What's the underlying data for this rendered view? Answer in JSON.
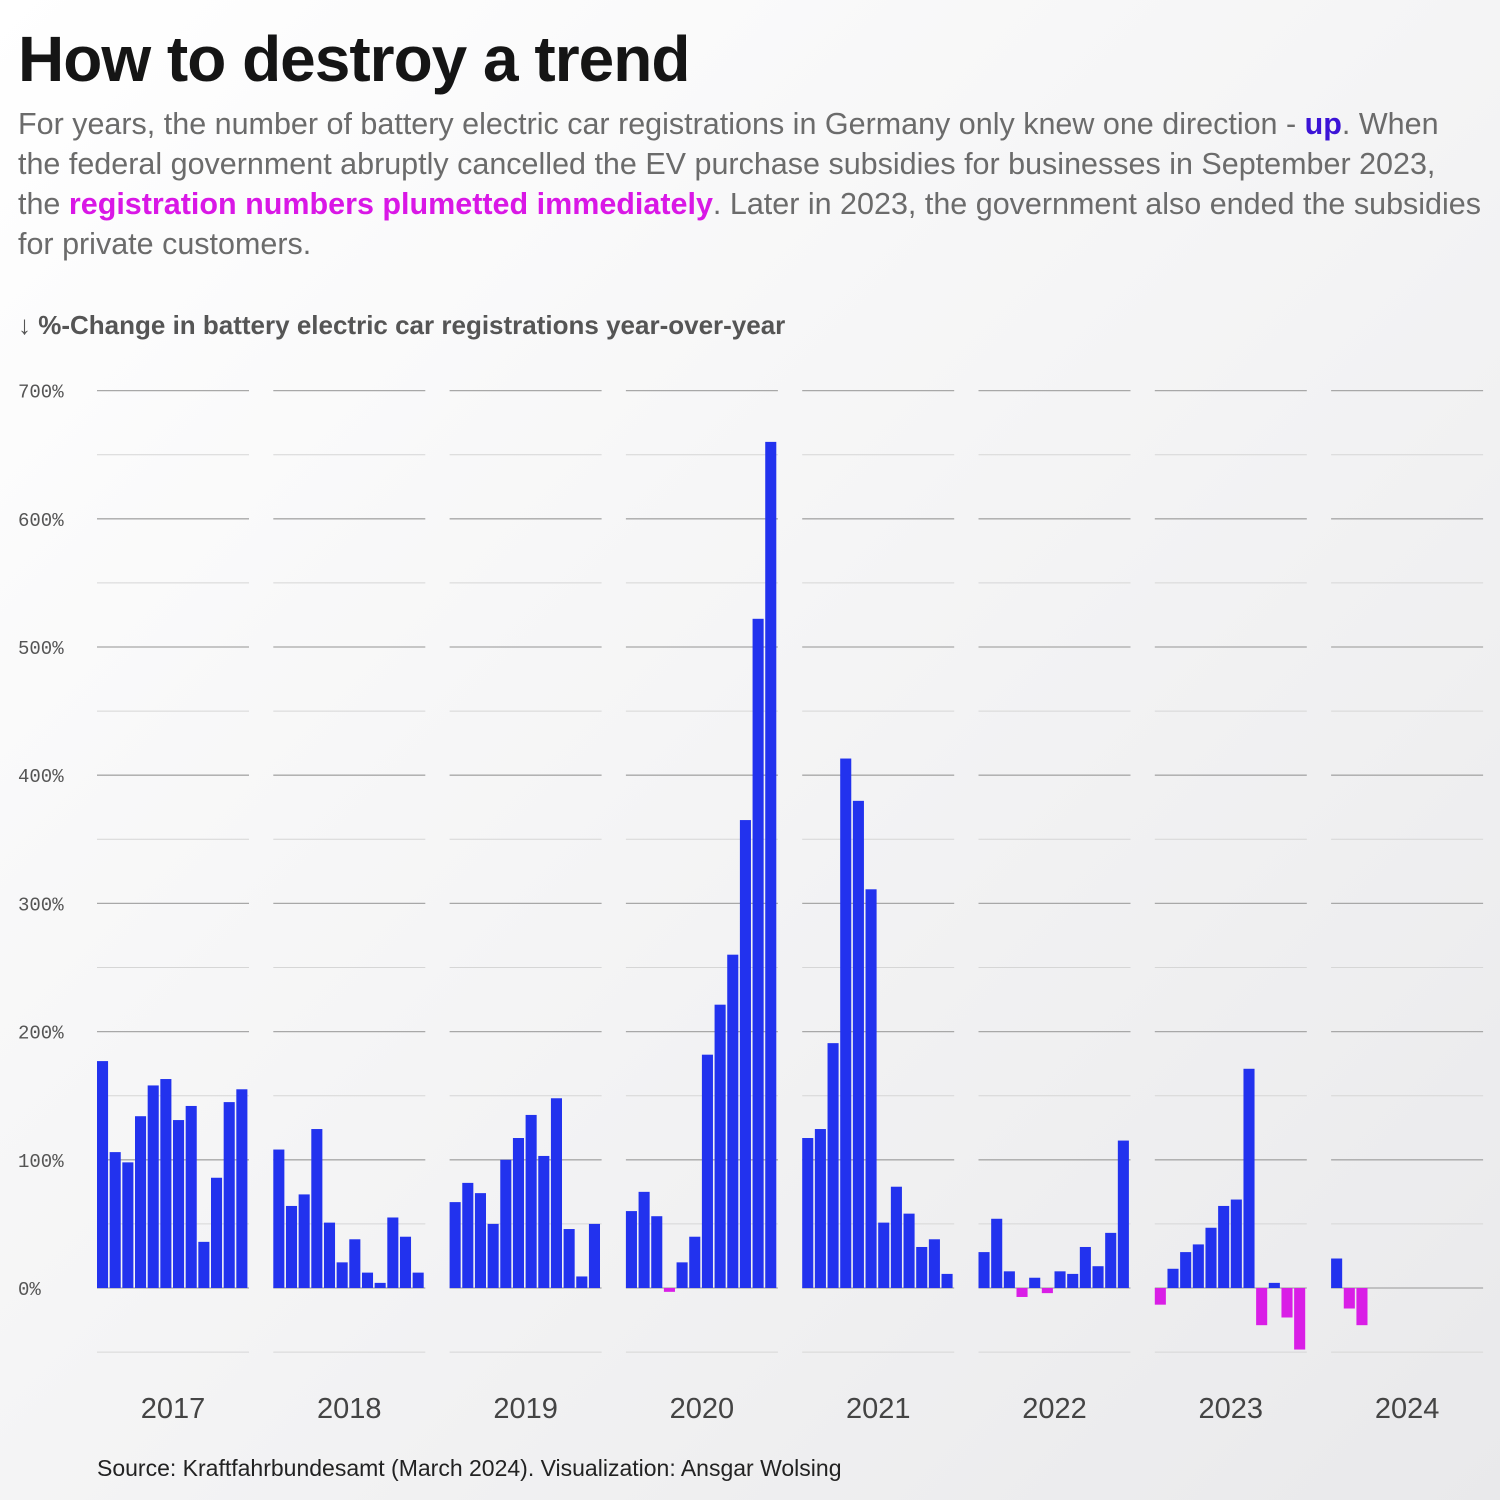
{
  "header": {
    "title": "How to destroy a trend",
    "subtitle_part1": "For years, the number of battery electric car registrations in Germany only knew one direction - ",
    "subtitle_up": "up",
    "subtitle_part2": ". When the federal government abruptly cancelled the EV purchase subsidies for businesses in September 2023, the ",
    "subtitle_down": "registration numbers plumetted immediately",
    "subtitle_part3": ". Later in 2023, the government also ended the subsidies for private customers.",
    "axis_title": "↓ %-Change in battery electric car registrations year-over-year"
  },
  "footer": {
    "source": "Source: Kraftfahrbundesamt (March 2024). Visualization: Ansgar Wolsing"
  },
  "colors": {
    "positive": "#2232ee",
    "negative": "#d91ee6",
    "highlight_up": "#3b13d6",
    "highlight_down": "#d917e6",
    "grid_major": "#a8a8a8",
    "grid_minor": "#d6d6d6"
  },
  "chart_data": {
    "type": "bar",
    "layout": "small-multiples-by-year",
    "ylabel": "%-Change in battery electric car registrations year-over-year",
    "ylim": [
      -50,
      700
    ],
    "yticks": [
      0,
      100,
      200,
      300,
      400,
      500,
      600,
      700
    ],
    "ytick_labels": [
      "0%",
      "100%",
      "200%",
      "300%",
      "400%",
      "500%",
      "600%",
      "700%"
    ],
    "grid": true,
    "panels": [
      {
        "year": "2017",
        "values": [
          177,
          106,
          98,
          134,
          158,
          163,
          131,
          142,
          36,
          86,
          145,
          155
        ]
      },
      {
        "year": "2018",
        "values": [
          108,
          64,
          73,
          124,
          51,
          20,
          38,
          12,
          4,
          55,
          40,
          12
        ]
      },
      {
        "year": "2019",
        "values": [
          67,
          82,
          74,
          50,
          100,
          117,
          135,
          103,
          148,
          46,
          9,
          50
        ]
      },
      {
        "year": "2020",
        "values": [
          60,
          75,
          56,
          -3,
          20,
          40,
          182,
          221,
          260,
          365,
          522,
          660
        ]
      },
      {
        "year": "2021",
        "values": [
          117,
          124,
          191,
          413,
          380,
          311,
          51,
          79,
          58,
          32,
          38,
          11
        ]
      },
      {
        "year": "2022",
        "values": [
          28,
          54,
          13,
          -7,
          8,
          -4,
          13,
          11,
          32,
          17,
          43,
          115
        ]
      },
      {
        "year": "2023",
        "values": [
          -13,
          15,
          28,
          34,
          47,
          64,
          69,
          171,
          -29,
          4,
          -23,
          -48
        ]
      },
      {
        "year": "2024",
        "values": [
          23,
          -16,
          -29
        ]
      }
    ]
  }
}
